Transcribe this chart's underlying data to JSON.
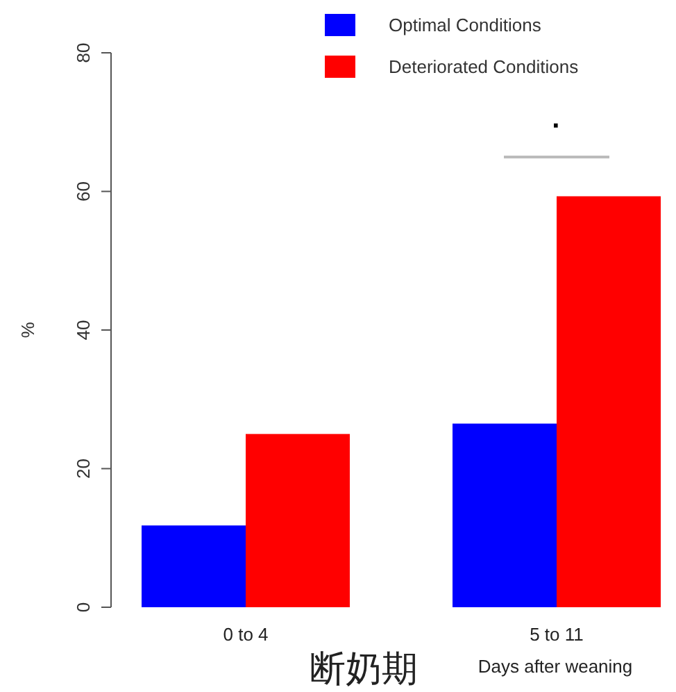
{
  "chart_data": {
    "type": "bar",
    "xlabel": "Days after weaning",
    "ylabel": "%",
    "categories": [
      "0 to 4",
      "5 to 11"
    ],
    "series": [
      {
        "name": "Optimal Conditions",
        "color": "#0000ff",
        "values": [
          11.8,
          26.5
        ]
      },
      {
        "name": "Deteriorated Conditions",
        "color": "#ff0000",
        "values": [
          25,
          59.3
        ]
      }
    ],
    "ylim": [
      0,
      80
    ],
    "yticks": [
      0,
      20,
      40,
      60,
      80
    ],
    "grid": false,
    "legend": "top right",
    "annotations": [
      "·",
      "断奶期"
    ]
  }
}
